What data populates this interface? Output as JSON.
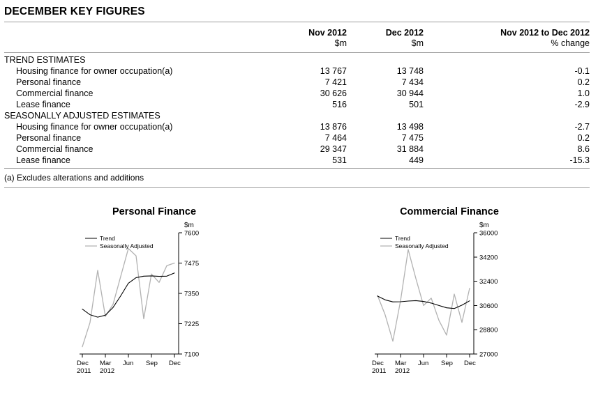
{
  "page": {
    "title": "DECEMBER KEY FIGURES"
  },
  "table": {
    "col_headers": [
      {
        "line1": "Nov 2012",
        "line2": "$m"
      },
      {
        "line1": "Dec 2012",
        "line2": "$m"
      },
      {
        "line1": "Nov 2012 to Dec 2012",
        "line2": "% change"
      }
    ],
    "sections": [
      {
        "heading": "TREND ESTIMATES",
        "rows": [
          {
            "label": "Housing finance for owner occupation(a)",
            "nov": "13 767",
            "dec": "13 748",
            "change": "-0.1"
          },
          {
            "label": "Personal finance",
            "nov": "7 421",
            "dec": "7 434",
            "change": "0.2"
          },
          {
            "label": "Commercial finance",
            "nov": "30 626",
            "dec": "30 944",
            "change": "1.0"
          },
          {
            "label": "Lease finance",
            "nov": "516",
            "dec": "501",
            "change": "-2.9"
          }
        ]
      },
      {
        "heading": "SEASONALLY ADJUSTED ESTIMATES",
        "rows": [
          {
            "label": "Housing finance for owner occupation(a)",
            "nov": "13 876",
            "dec": "13 498",
            "change": "-2.7"
          },
          {
            "label": "Personal finance",
            "nov": "7 464",
            "dec": "7 475",
            "change": "0.2"
          },
          {
            "label": "Commercial finance",
            "nov": "29 347",
            "dec": "31 884",
            "change": "8.6"
          },
          {
            "label": "Lease finance",
            "nov": "531",
            "dec": "449",
            "change": "-15.3"
          }
        ]
      }
    ],
    "footnote": "(a) Excludes alterations and additions"
  },
  "chart_data": [
    {
      "type": "line",
      "title": "Personal Finance",
      "ylabel": "$m",
      "ylim": [
        7100,
        7600
      ],
      "yticks": [
        7100,
        7225,
        7350,
        7475,
        7600
      ],
      "grid": false,
      "legend_position": "top-left",
      "x": [
        "Dec 2011",
        "Jan 2012",
        "Feb 2012",
        "Mar 2012",
        "Apr 2012",
        "May 2012",
        "Jun 2012",
        "Jul 2012",
        "Aug 2012",
        "Sep 2012",
        "Oct 2012",
        "Nov 2012",
        "Dec 2012"
      ],
      "xticks": [
        {
          "i": 0,
          "label": "Dec",
          "year": "2011"
        },
        {
          "i": 3,
          "label": "Mar",
          "year": "2012"
        },
        {
          "i": 6,
          "label": "Jun"
        },
        {
          "i": 9,
          "label": "Sep"
        },
        {
          "i": 12,
          "label": "Dec"
        }
      ],
      "series": [
        {
          "name": "Trend",
          "color": "#000000",
          "values": [
            7285,
            7262,
            7252,
            7260,
            7292,
            7340,
            7392,
            7415,
            7421,
            7422,
            7420,
            7421,
            7434
          ]
        },
        {
          "name": "Seasonally Adjusted",
          "color": "#b2b2b2",
          "values": [
            7130,
            7230,
            7445,
            7255,
            7305,
            7420,
            7535,
            7505,
            7245,
            7430,
            7395,
            7464,
            7475
          ]
        }
      ]
    },
    {
      "type": "line",
      "title": "Commercial Finance",
      "ylabel": "$m",
      "ylim": [
        27000,
        36000
      ],
      "yticks": [
        27000,
        28800,
        30600,
        32400,
        34200,
        36000
      ],
      "grid": false,
      "legend_position": "top-left",
      "x": [
        "Dec 2011",
        "Jan 2012",
        "Feb 2012",
        "Mar 2012",
        "Apr 2012",
        "May 2012",
        "Jun 2012",
        "Jul 2012",
        "Aug 2012",
        "Sep 2012",
        "Oct 2012",
        "Nov 2012",
        "Dec 2012"
      ],
      "xticks": [
        {
          "i": 0,
          "label": "Dec",
          "year": "2011"
        },
        {
          "i": 3,
          "label": "Mar",
          "year": "2012"
        },
        {
          "i": 6,
          "label": "Jun"
        },
        {
          "i": 9,
          "label": "Sep"
        },
        {
          "i": 12,
          "label": "Dec"
        }
      ],
      "series": [
        {
          "name": "Trend",
          "color": "#000000",
          "values": [
            31300,
            31020,
            30870,
            30880,
            30930,
            30960,
            30900,
            30780,
            30600,
            30430,
            30380,
            30626,
            30944
          ]
        },
        {
          "name": "Seasonally Adjusted",
          "color": "#b2b2b2",
          "values": [
            31350,
            29900,
            27950,
            30950,
            34750,
            32600,
            30600,
            31150,
            29500,
            28400,
            31450,
            29347,
            31884
          ]
        }
      ]
    }
  ]
}
